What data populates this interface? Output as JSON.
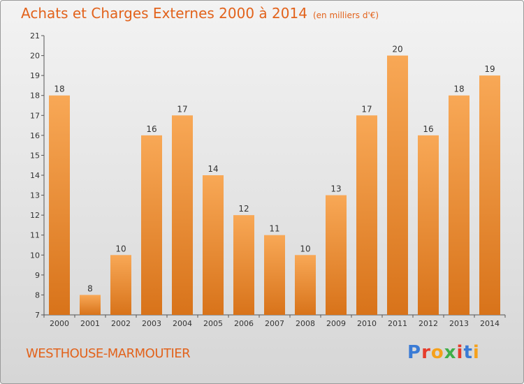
{
  "title": "Achats et Charges Externes 2000 à 2014",
  "unit_note": "(en milliers d'€)",
  "city": "WESTHOUSE-MARMOUTIER",
  "logo": {
    "text": "Proxiti",
    "letters": [
      "P",
      "r",
      "o",
      "x",
      "i",
      "t",
      "i"
    ],
    "colors": [
      "#3a7bd5",
      "#e63c2b",
      "#f5a11c",
      "#3fae49",
      "#e63c2b",
      "#3a7bd5",
      "#f5a11c"
    ]
  },
  "colors": {
    "bar": "#ef8b2e",
    "bar_light": "#f7ad62",
    "title": "#e2621b"
  },
  "chart_data": {
    "type": "bar",
    "title": "Achats et Charges Externes 2000 à 2014",
    "subtitle": "(en milliers d'€)",
    "categories": [
      "2000",
      "2001",
      "2002",
      "2003",
      "2004",
      "2005",
      "2006",
      "2007",
      "2008",
      "2009",
      "2010",
      "2011",
      "2012",
      "2013",
      "2014"
    ],
    "values": [
      18,
      8,
      10,
      16,
      17,
      14,
      12,
      11,
      10,
      13,
      17,
      20,
      16,
      18,
      19
    ],
    "ylim": [
      7,
      21
    ],
    "yticks": [
      7,
      8,
      9,
      10,
      11,
      12,
      13,
      14,
      15,
      16,
      17,
      18,
      19,
      20,
      21
    ],
    "grid": false,
    "data_labels": true
  }
}
